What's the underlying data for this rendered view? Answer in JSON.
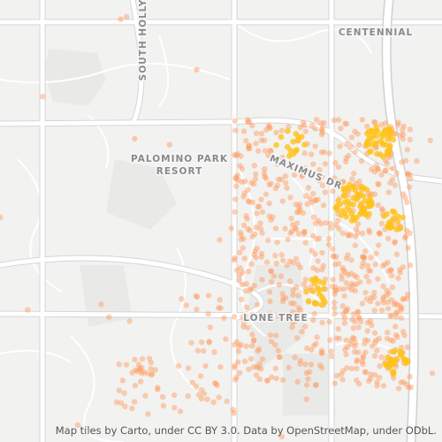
{
  "labels": [
    {
      "lines": [
        "CENTENNIAL"
      ]
    },
    {
      "lines": [
        "SOUTH HOLLY"
      ]
    },
    {
      "lines": [
        "PALOMINO PARK",
        "RESORT"
      ]
    },
    {
      "lines": [
        "MAXIMUS DR"
      ]
    },
    {
      "lines": [
        "LONE TREE"
      ]
    }
  ],
  "attribution": "Map tiles by Carto, under CC BY 3.0. Data by OpenStreetMap, under ODbL."
}
